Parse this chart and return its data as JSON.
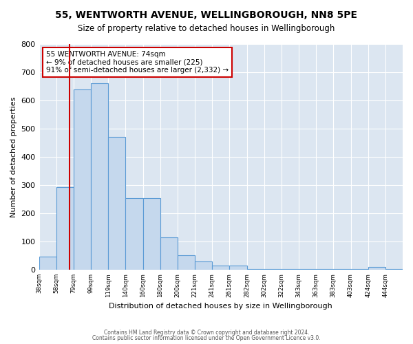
{
  "title": "55, WENTWORTH AVENUE, WELLINGBOROUGH, NN8 5PE",
  "subtitle": "Size of property relative to detached houses in Wellingborough",
  "xlabel": "Distribution of detached houses by size in Wellingborough",
  "ylabel": "Number of detached properties",
  "bin_labels": [
    "38sqm",
    "58sqm",
    "79sqm",
    "99sqm",
    "119sqm",
    "140sqm",
    "160sqm",
    "180sqm",
    "200sqm",
    "221sqm",
    "241sqm",
    "261sqm",
    "282sqm",
    "302sqm",
    "322sqm",
    "343sqm",
    "363sqm",
    "383sqm",
    "403sqm",
    "424sqm",
    "444sqm"
  ],
  "bar_heights": [
    47,
    293,
    640,
    660,
    470,
    253,
    253,
    114,
    50,
    28,
    14,
    14,
    3,
    3,
    3,
    3,
    3,
    3,
    3,
    10,
    3
  ],
  "bar_color": "#c5d8ed",
  "bar_edge_color": "#5b9bd5",
  "marker_label": "55 WENTWORTH AVENUE: 74sqm",
  "annotation_line1": "← 9% of detached houses are smaller (225)",
  "annotation_line2": "91% of semi-detached houses are larger (2,332) →",
  "annotation_box_color": "#ffffff",
  "annotation_box_edge": "#cc0000",
  "vline_color": "#cc0000",
  "ylim": [
    0,
    800
  ],
  "yticks": [
    0,
    100,
    200,
    300,
    400,
    500,
    600,
    700,
    800
  ],
  "background_color": "#dce6f1",
  "footer1": "Contains HM Land Registry data © Crown copyright and database right 2024.",
  "footer2": "Contains public sector information licensed under the Open Government Licence v3.0."
}
